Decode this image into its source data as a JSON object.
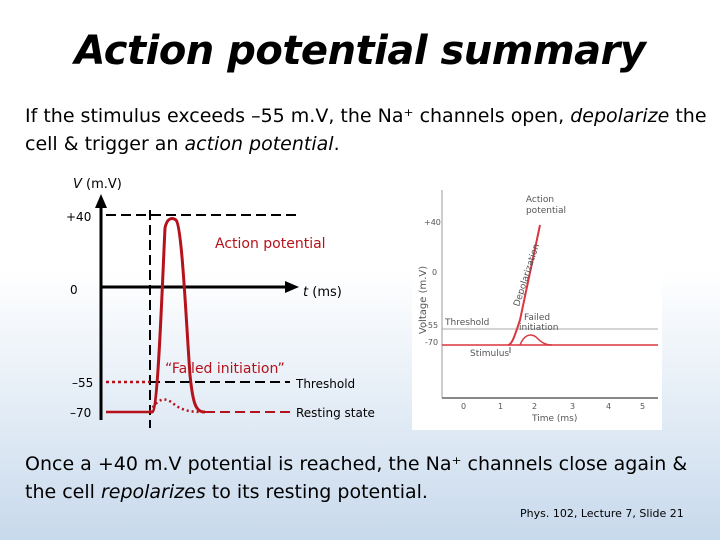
{
  "slide": {
    "title": "Action potential summary",
    "intro": {
      "before": "If the stimulus exceeds –55 m.V, the Na⁺ channels open, ",
      "em1": "depolarize",
      "middle": " the cell & trigger an ",
      "em2": "action potential",
      "after": "."
    },
    "outro": {
      "before": "Once a +40 m.V potential is reached, the Na⁺ channels close again & the cell ",
      "em": "repolarizes",
      "after": " to its resting potential."
    },
    "footer": "Phys. 102, Lecture 7, Slide 21"
  },
  "diagram": {
    "y_axis_var": "V",
    "y_axis_unit": " (m.V)",
    "x_axis_var": "t",
    "x_axis_unit": " (ms)",
    "tick_plus40": "+40",
    "tick_zero": "0",
    "tick_minus55": "–55",
    "tick_minus70": "–70",
    "label_action_potential": "Action potential",
    "label_failed": "“Failed initiation”",
    "label_threshold": "Threshold",
    "label_resting": "Resting state",
    "colors": {
      "curve": "#b5121b",
      "axis": "#000000"
    }
  },
  "reference_figure": {
    "ylabel": "Voltage (m.V)",
    "xlabel": "Time (ms)",
    "y_ticks": [
      "+40",
      "0",
      "-55",
      "-70"
    ],
    "x_ticks": [
      "0",
      "1",
      "2",
      "3",
      "4",
      "5"
    ],
    "label_action_potential_line1": "Action",
    "label_action_potential_line2": "potential",
    "label_depolarization": "Depolarization",
    "label_threshold": "Threshold",
    "label_failed_line1": "Failed",
    "label_failed_line2": "initiation",
    "label_stimulus": "Stimulus",
    "colors": {
      "curve": "#d9363e",
      "text": "#555555"
    }
  }
}
